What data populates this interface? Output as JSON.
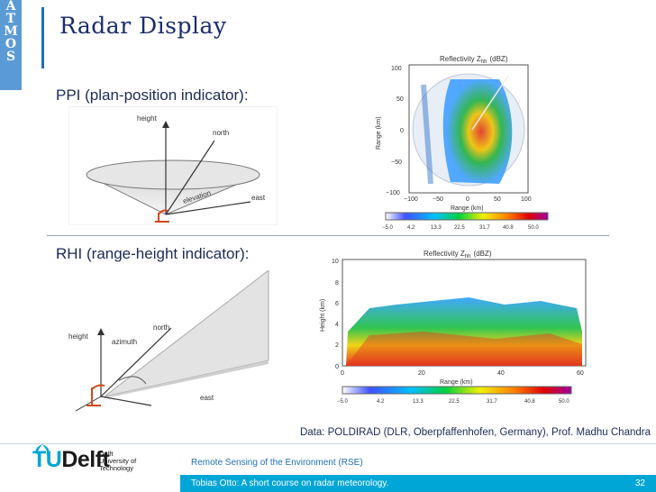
{
  "sidebar": {
    "letters": [
      "A",
      "T",
      "M",
      "O",
      "S"
    ]
  },
  "slide": {
    "title": "Radar Display",
    "ppi_label": "PPI (plan-position indicator):",
    "rhi_label": "RHI (range-height indicator):",
    "credit": "Data: POLDIRAD (DLR, Oberpfaffenhofen, Germany), Prof. Madhu Chandra"
  },
  "ppi_diagram": {
    "height": "height",
    "north": "north",
    "elevation": "elevation",
    "east": "east"
  },
  "rhi_diagram": {
    "height": "height",
    "azimuth": "azimuth",
    "north": "north",
    "east": "east"
  },
  "ppi_plot": {
    "title": "Reflectivity  Z",
    "sub": "hh",
    "unit": "(dBZ)",
    "xlabel": "Range (km)",
    "ylabel": "Range (km)",
    "xticks": [
      "−100",
      "−50",
      "0",
      "50",
      "100"
    ],
    "yticks": [
      "100",
      "50",
      "0",
      "−50",
      "−100"
    ],
    "colorbar": [
      "−5.0",
      "4.2",
      "13.3",
      "22.5",
      "31.7",
      "40.8",
      "50.0"
    ]
  },
  "rhi_plot": {
    "title": "Reflectivity  Z",
    "sub": "hh",
    "unit": "(dBZ)",
    "xlabel": "Range  (km)",
    "ylabel": "Height  (km)",
    "xticks": [
      "0",
      "20",
      "40",
      "60"
    ],
    "yticks": [
      "10",
      "8",
      "6",
      "4",
      "2",
      "0"
    ],
    "colorbar": [
      "−5.0",
      "4.2",
      "13.3",
      "22.5",
      "31.7",
      "40.8",
      "50.0"
    ]
  },
  "footer": {
    "logo_tu": "TU",
    "logo_delft": "Delft",
    "university": [
      "Delft",
      "University of",
      "Technology"
    ],
    "course": "Remote Sensing of the Environment (RSE)",
    "subtitle": "Tobias Otto: A short course on radar meteorology.",
    "page": "32"
  },
  "colors": {
    "accent": "#00a6d6",
    "title": "#1a2b6d",
    "sidebar": "#5b9bd5"
  }
}
